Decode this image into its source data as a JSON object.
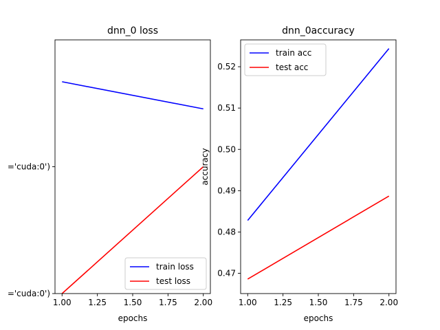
{
  "chart_data": [
    {
      "type": "line",
      "title": "dnn_0 loss",
      "xlabel": "epochs",
      "ylabel": "",
      "x": [
        1.0,
        2.0
      ],
      "xlim": [
        0.95,
        2.05
      ],
      "xticks": [
        "1.00",
        "1.25",
        "1.50",
        "1.75",
        "2.00"
      ],
      "ylim": [
        0,
        1
      ],
      "yticks": [
        {
          "label": "='cuda:0')",
          "value": 0.0
        },
        {
          "label": "='cuda:0')",
          "value": 0.5
        }
      ],
      "series": [
        {
          "name": "train loss",
          "color": "#0000ff",
          "values": [
            0.835,
            0.728
          ]
        },
        {
          "name": "test loss",
          "color": "#ff0000",
          "values": [
            0.0,
            0.5
          ]
        }
      ],
      "legend_position": "lower right",
      "grid": false
    },
    {
      "type": "line",
      "title": "dnn_0accuracy",
      "xlabel": "epochs",
      "ylabel": "accuracy",
      "x": [
        1.0,
        2.0
      ],
      "xlim": [
        0.95,
        2.05
      ],
      "xticks": [
        "1.00",
        "1.25",
        "1.50",
        "1.75",
        "2.00"
      ],
      "ylim": [
        0.4651,
        0.5265
      ],
      "yticks": [
        {
          "label": "0.47",
          "value": 0.47
        },
        {
          "label": "0.48",
          "value": 0.48
        },
        {
          "label": "0.49",
          "value": 0.49
        },
        {
          "label": "0.50",
          "value": 0.5
        },
        {
          "label": "0.51",
          "value": 0.51
        },
        {
          "label": "0.52",
          "value": 0.52
        }
      ],
      "series": [
        {
          "name": "train acc",
          "color": "#0000ff",
          "values": [
            0.4828,
            0.5244
          ]
        },
        {
          "name": "test acc",
          "color": "#ff0000",
          "values": [
            0.4686,
            0.4887
          ]
        }
      ],
      "legend_position": "upper left",
      "grid": false
    }
  ]
}
